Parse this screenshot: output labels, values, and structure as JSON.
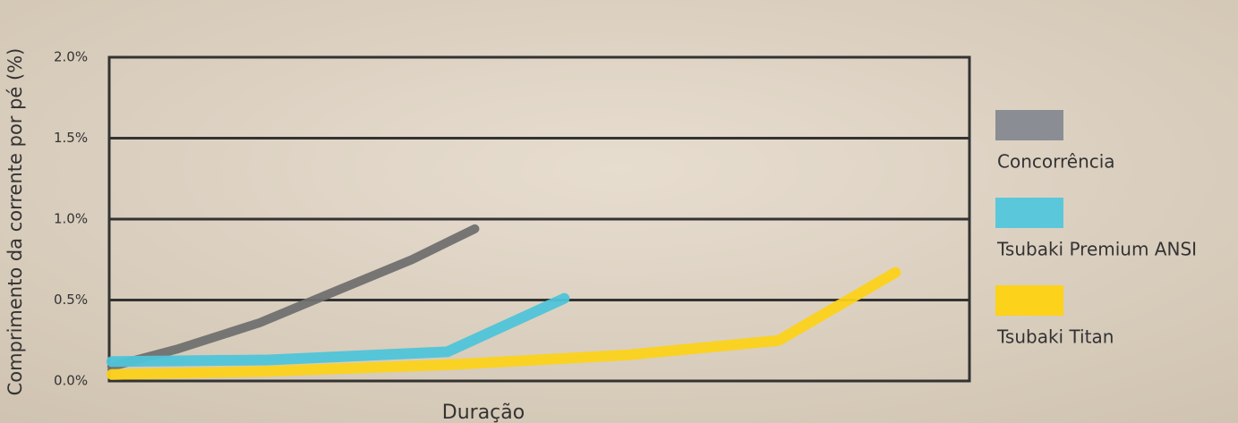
{
  "chart_data": {
    "type": "line",
    "y_label": "Comprimento da corrente por pé  (%)",
    "x_label": "Duração",
    "xlim": [
      0,
      100
    ],
    "ylim": [
      0,
      2
    ],
    "yticks": [
      {
        "value": 0,
        "label": "0.0%"
      },
      {
        "value": 0.5,
        "label": "0.5%"
      },
      {
        "value": 1,
        "label": "1.0%"
      },
      {
        "value": 1.5,
        "label": "1.5%"
      },
      {
        "value": 2,
        "label": "2.0%"
      }
    ],
    "grid": true,
    "legend": "right",
    "series": [
      {
        "name": "Concorrência",
        "color": "#707070",
        "legend_color": "#8a8d93",
        "x": [
          0.3,
          8.1,
          17.5,
          27.9,
          35.2,
          42.5
        ],
        "values": [
          0.09,
          0.2,
          0.36,
          0.59,
          0.75,
          0.94
        ]
      },
      {
        "name": "Tsubaki Premium ANSI",
        "color": "#4fc4d8",
        "legend_color": "#5ac8da",
        "x": [
          0.3,
          18.5,
          39.3,
          52.9
        ],
        "values": [
          0.12,
          0.13,
          0.18,
          0.51
        ]
      },
      {
        "name": "Tsubaki Titan",
        "color": "#fcd21a",
        "legend_color": "#fcd21a",
        "x": [
          0.3,
          18.5,
          39.3,
          60.1,
          77.8,
          91.4
        ],
        "values": [
          0.04,
          0.06,
          0.1,
          0.16,
          0.25,
          0.67
        ]
      }
    ]
  }
}
